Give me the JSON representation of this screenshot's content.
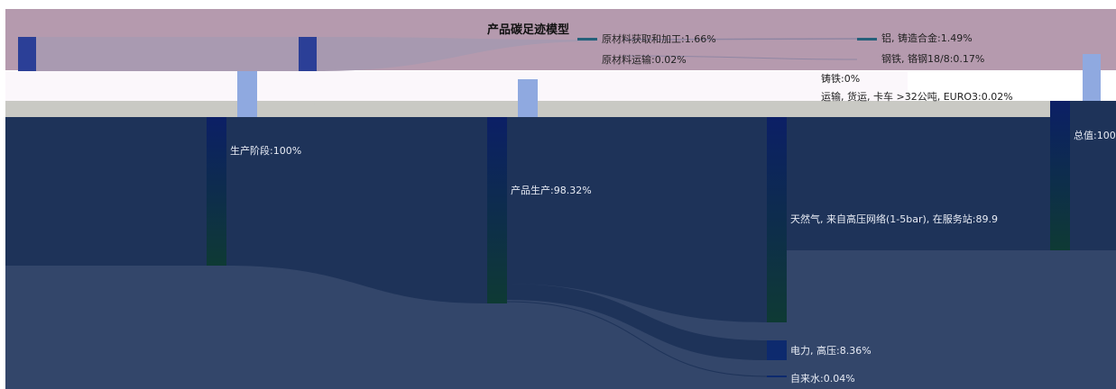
{
  "chart_data": {
    "type": "sankey",
    "title": "产品碳足迹模型",
    "nodes": [
      {
        "id": "total",
        "label": "总值:100"
      },
      {
        "id": "stage",
        "label": "生产阶段:100%"
      },
      {
        "id": "prod",
        "label": "产品生产:98.32%"
      },
      {
        "id": "raw",
        "label": "原材料获取和加工:1.66%"
      },
      {
        "id": "raw_tr",
        "label": "原材料运输:0.02%"
      },
      {
        "id": "gas",
        "label": "天然气, 来自高压网络(1-5bar), 在服务站:89.9"
      },
      {
        "id": "elec",
        "label": "电力, 高压:8.36%"
      },
      {
        "id": "water",
        "label": "自来水:0.04%"
      },
      {
        "id": "alu",
        "label": "铝, 铸造合金:1.49%"
      },
      {
        "id": "steel",
        "label": "钢铁, 铬钢18/8:0.17%"
      },
      {
        "id": "iron",
        "label": "铸铁:0%"
      },
      {
        "id": "truck",
        "label": "运输, 货运, 卡车 >32公吨, EURO3:0.02%"
      }
    ],
    "links": [
      {
        "source": "stage",
        "target": "prod",
        "value": 98.32
      },
      {
        "source": "stage",
        "target": "raw",
        "value": 1.66
      },
      {
        "source": "stage",
        "target": "raw_tr",
        "value": 0.02
      },
      {
        "source": "prod",
        "target": "gas",
        "value": 89.92
      },
      {
        "source": "prod",
        "target": "elec",
        "value": 8.36
      },
      {
        "source": "prod",
        "target": "water",
        "value": 0.04
      },
      {
        "source": "raw",
        "target": "alu",
        "value": 1.49
      },
      {
        "source": "raw",
        "target": "steel",
        "value": 0.17
      },
      {
        "source": "raw",
        "target": "iron",
        "value": 0
      },
      {
        "source": "raw_tr",
        "target": "truck",
        "value": 0.02
      }
    ],
    "colors": {
      "page_bg": "#ffffff",
      "dark_band": "#1e3359",
      "mid_band": "#33466a",
      "node_dark": "#102a54",
      "node_green": "#0e3a34",
      "node_blue": "#2b3f97",
      "node_light": "#8fa9e0",
      "pink_band": "#b59aae",
      "grey_band": "#c9c9c4",
      "teal_small": "#25607a"
    }
  }
}
